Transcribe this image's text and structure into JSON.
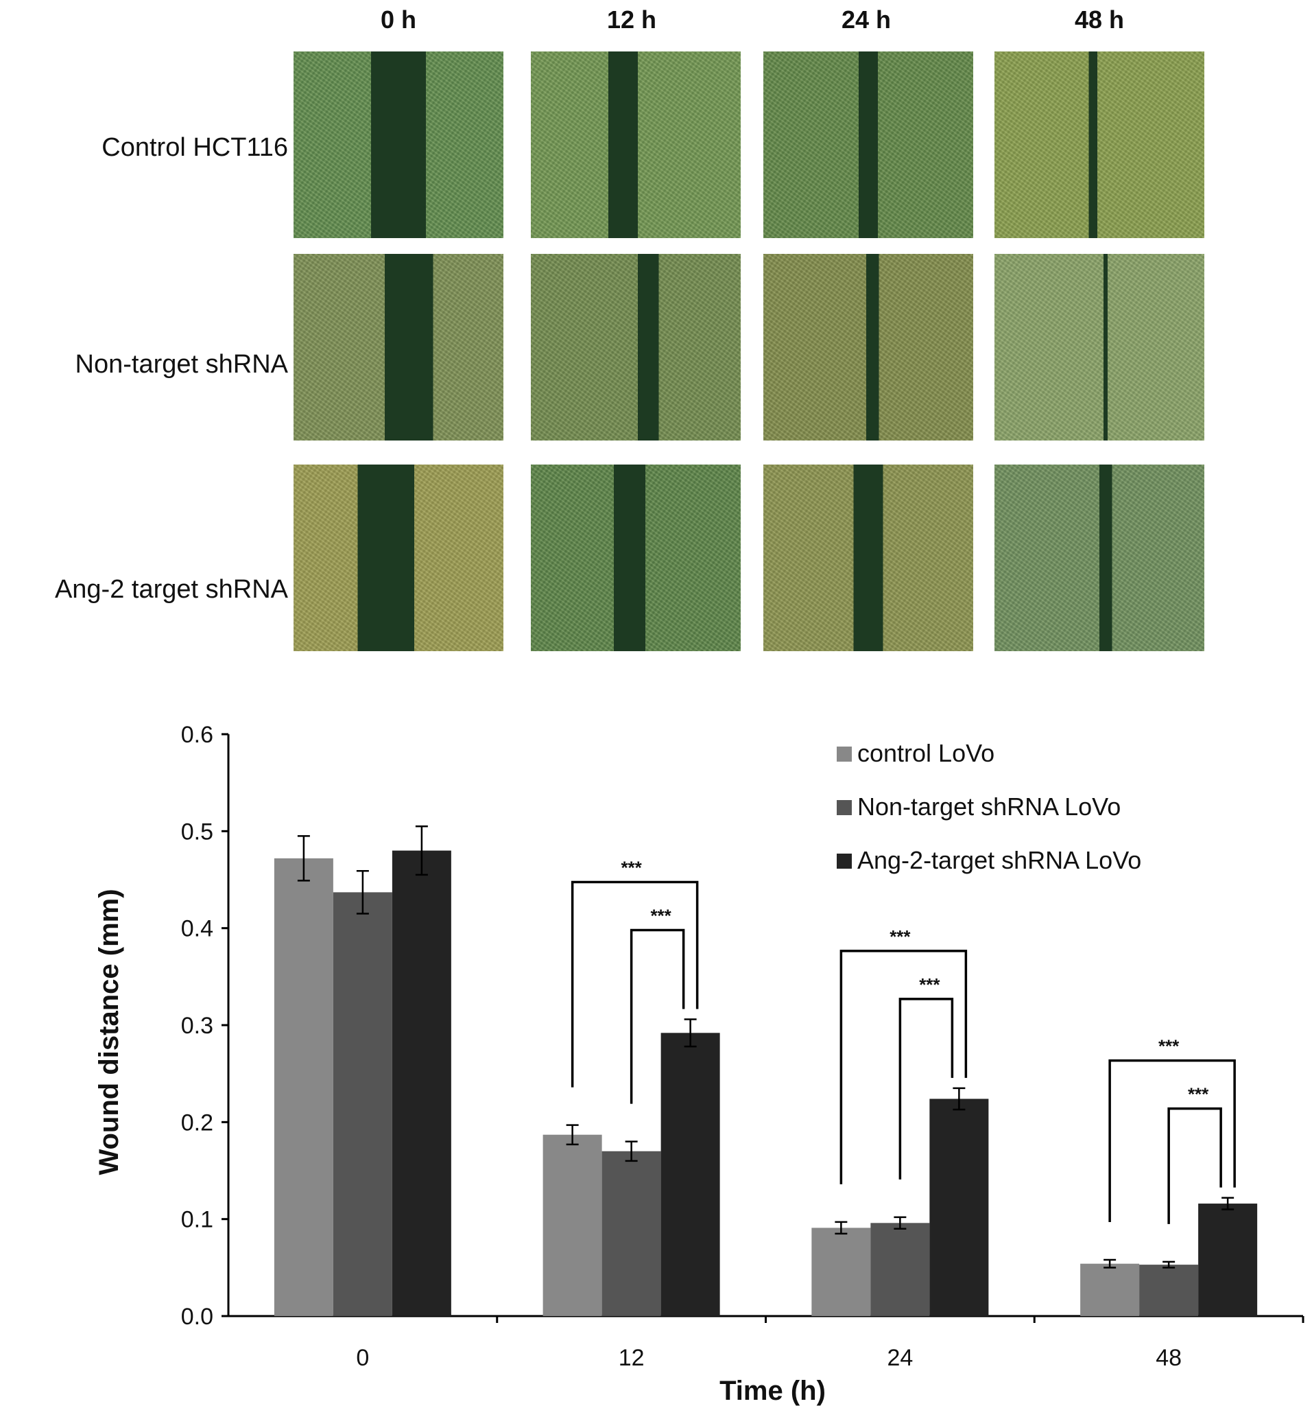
{
  "micrograph_panel": {
    "column_labels": [
      "0 h",
      "12 h",
      "24 h",
      "48 h"
    ],
    "row_labels": [
      "Control HCT116",
      "Non-target shRNA",
      "Ang-2 target shRNA"
    ],
    "tile_tints": [
      [
        "#5e8a4e",
        "#6f9452",
        "#5f8649",
        "#879c4e"
      ],
      [
        "#7b8d55",
        "#70894f",
        "#7f8a4c",
        "#87a068"
      ],
      [
        "#9a9a52",
        "#5a8249",
        "#8a9150",
        "#6d8d5e"
      ]
    ],
    "wound_color": "#1d3a22"
  },
  "chart_data": {
    "type": "bar",
    "categories": [
      "0",
      "12",
      "24",
      "48"
    ],
    "xlabel": "Time (h)",
    "ylabel": "Wound distance (mm)",
    "ylim": [
      0,
      0.6
    ],
    "yticks": [
      "0.0",
      "0.1",
      "0.2",
      "0.3",
      "0.4",
      "0.5",
      "0.6"
    ],
    "grid": false,
    "legend_position": "top-right",
    "series": [
      {
        "name": "control LoVo",
        "color": "#888888",
        "values": [
          0.472,
          0.187,
          0.091,
          0.054
        ],
        "errors": [
          0.023,
          0.01,
          0.006,
          0.004
        ]
      },
      {
        "name": "Non-target shRNA LoVo",
        "color": "#555555",
        "values": [
          0.437,
          0.17,
          0.096,
          0.053
        ],
        "errors": [
          0.022,
          0.01,
          0.006,
          0.003
        ]
      },
      {
        "name": "Ang-2-target shRNA LoVo",
        "color": "#232323",
        "values": [
          0.48,
          0.292,
          0.224,
          0.116
        ],
        "errors": [
          0.025,
          0.014,
          0.011,
          0.006
        ]
      }
    ],
    "significance": [
      {
        "category_index": 1,
        "label": "***"
      },
      {
        "category_index": 2,
        "label": "***"
      },
      {
        "category_index": 3,
        "label": "***"
      }
    ]
  }
}
